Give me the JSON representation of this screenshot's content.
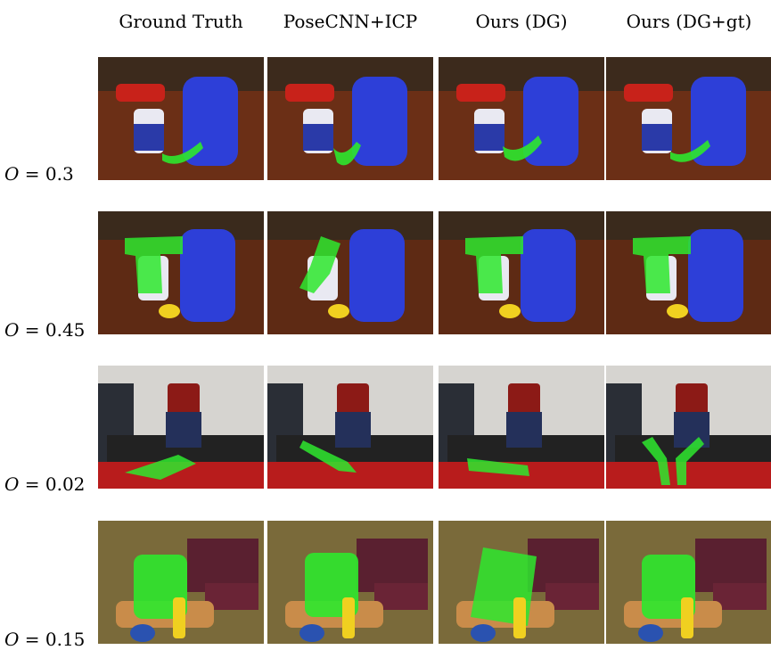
{
  "columns": [
    {
      "label": "Ground Truth"
    },
    {
      "label": "PoseCNN+ICP"
    },
    {
      "label": "Ours (DG)"
    },
    {
      "label": "Ours (DG+gt)"
    }
  ],
  "rows": [
    {
      "label_var": "O",
      "label_eq": " = 0.3"
    },
    {
      "label_var": "O",
      "label_eq": " = 0.45"
    },
    {
      "label_var": "O",
      "label_eq": " = 0.02"
    },
    {
      "label_var": "O",
      "label_eq": " = 0.15"
    }
  ],
  "overlay_color": "#2ee82e",
  "scenes": {
    "scene1_table": "#6b2f16",
    "scene1_pitcher": "#2d3fd8",
    "scene2_table": "#5e2a14",
    "scene3_wall": "#d6d4d0",
    "scene3_box": "#b81c1c",
    "scene4_floor": "#7a6a3a"
  }
}
